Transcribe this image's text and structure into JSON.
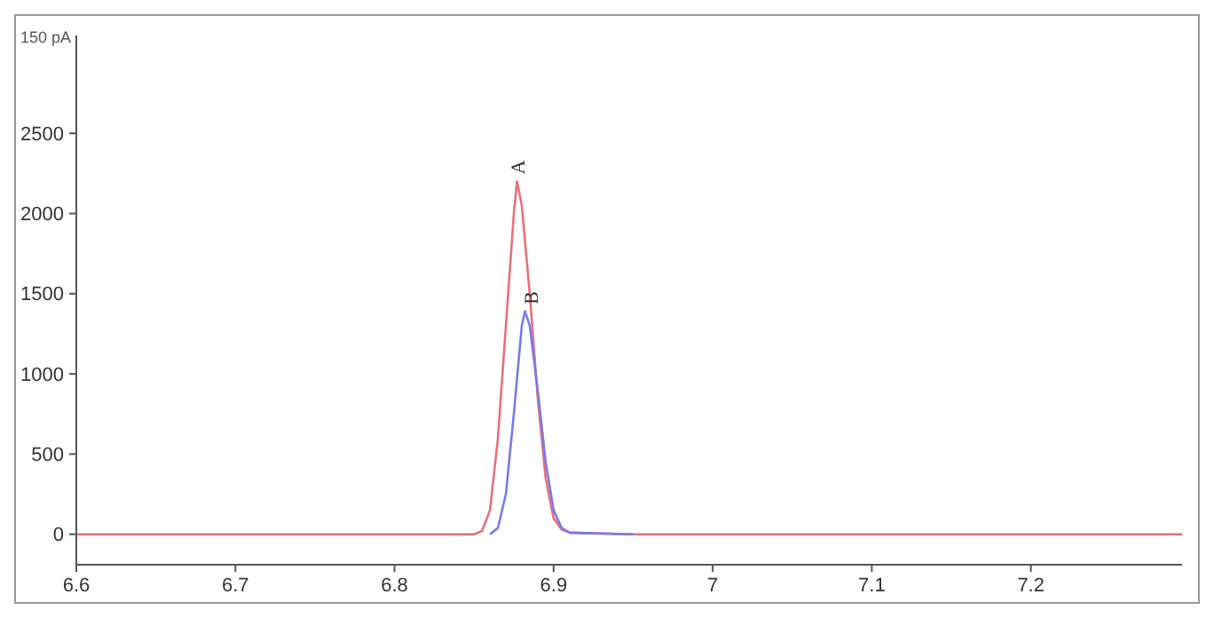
{
  "chart_data": {
    "type": "line",
    "ylabel": "150 pA",
    "xlim": [
      6.6,
      7.295
    ],
    "ylim": [
      -190,
      3110
    ],
    "xticks": [
      6.6,
      6.7,
      6.8,
      6.9,
      7,
      7.1,
      7.2
    ],
    "yticks": [
      0,
      500,
      1000,
      1500,
      2000,
      2500
    ],
    "series": [
      {
        "color": "#e8707a",
        "x": [
          6.6,
          6.85,
          6.855,
          6.86,
          6.865,
          6.87,
          6.875,
          6.877,
          6.88,
          6.885,
          6.89,
          6.895,
          6.9,
          6.905,
          6.91,
          6.95,
          7.0,
          7.295
        ],
        "values": [
          0,
          0,
          20,
          150,
          600,
          1300,
          2000,
          2200,
          2050,
          1500,
          850,
          350,
          100,
          30,
          10,
          0,
          0,
          0
        ]
      },
      {
        "color": "#7a7ae8",
        "x": [
          6.86,
          6.865,
          6.87,
          6.875,
          6.88,
          6.882,
          6.885,
          6.89,
          6.895,
          6.9,
          6.905,
          6.91,
          6.95
        ],
        "values": [
          0,
          40,
          250,
          750,
          1300,
          1390,
          1300,
          900,
          450,
          150,
          40,
          10,
          0
        ]
      }
    ],
    "annotations": [
      {
        "text": "A",
        "x": 6.877,
        "y": 2200
      },
      {
        "text": "B",
        "x": 6.882,
        "y": 1390
      }
    ],
    "grid": false,
    "marker": "none",
    "line_style": "solid"
  }
}
